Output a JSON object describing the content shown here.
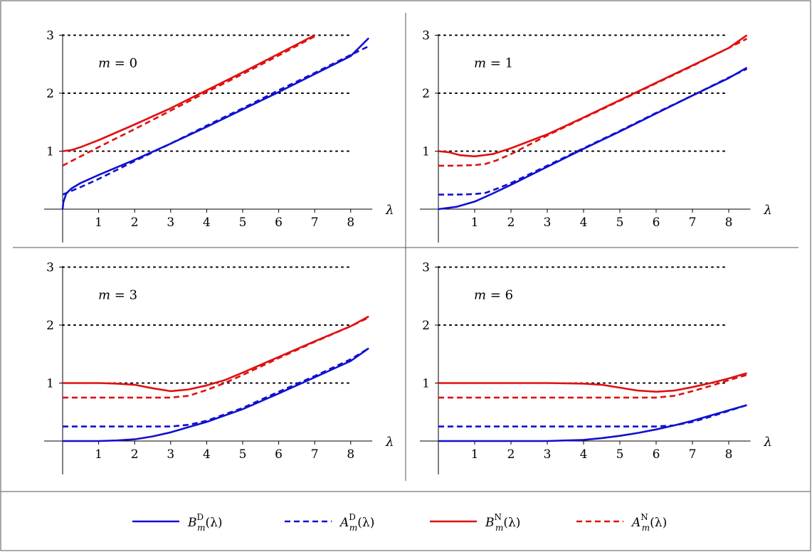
{
  "chart_data": [
    {
      "type": "line",
      "panel_label": "m = 0",
      "m": 0,
      "xlabel": "λ",
      "x_ticks": [
        "1",
        "2",
        "3",
        "4",
        "5",
        "6",
        "7",
        "8"
      ],
      "y_ticks": [
        "1",
        "2",
        "3"
      ],
      "xlim": [
        0,
        8.5
      ],
      "ylim": [
        0,
        3
      ],
      "grid": "dotted horizontal at y = 1, 2, 3",
      "series": [
        {
          "name": "B_m^D(λ)",
          "style": "solid",
          "color": "#1010d0",
          "x": [
            0,
            0.02,
            0.1,
            0.25,
            0.5,
            1,
            2,
            3,
            4,
            5,
            6,
            7,
            8,
            8.5
          ],
          "y": [
            0,
            0.12,
            0.27,
            0.36,
            0.45,
            0.59,
            0.85,
            1.13,
            1.42,
            1.72,
            2.02,
            2.33,
            2.64,
            2.95
          ]
        },
        {
          "name": "A_m^D(λ)",
          "style": "dashed",
          "color": "#1010d0",
          "x": [
            0,
            0.5,
            1,
            2,
            3,
            4,
            5,
            6,
            7,
            8,
            8.5
          ],
          "y": [
            0.25,
            0.38,
            0.52,
            0.83,
            1.13,
            1.44,
            1.74,
            2.05,
            2.35,
            2.66,
            2.81
          ]
        },
        {
          "name": "B_m^N(λ)",
          "style": "solid",
          "color": "#e01010",
          "x": [
            0,
            0.25,
            0.5,
            1,
            2,
            3,
            4,
            5,
            6,
            7
          ],
          "y": [
            1.0,
            1.02,
            1.07,
            1.19,
            1.46,
            1.74,
            2.05,
            2.36,
            2.68,
            3.0
          ]
        },
        {
          "name": "A_m^N(λ)",
          "style": "dashed",
          "color": "#e01010",
          "x": [
            0,
            1,
            2,
            3,
            4,
            5,
            6,
            7
          ],
          "y": [
            0.75,
            1.07,
            1.38,
            1.7,
            2.02,
            2.33,
            2.65,
            2.98
          ]
        }
      ]
    },
    {
      "type": "line",
      "panel_label": "m = 1",
      "m": 1,
      "xlabel": "λ",
      "x_ticks": [
        "1",
        "2",
        "3",
        "4",
        "5",
        "6",
        "7",
        "8"
      ],
      "y_ticks": [
        "1",
        "2",
        "3"
      ],
      "xlim": [
        0,
        8.5
      ],
      "ylim": [
        0,
        3
      ],
      "grid": "dotted horizontal at y = 1, 2, 3",
      "series": [
        {
          "name": "B_m^D(λ)",
          "style": "solid",
          "color": "#1010d0",
          "x": [
            0,
            0.5,
            1,
            1.5,
            2,
            3,
            4,
            5,
            6,
            7,
            8,
            8.5
          ],
          "y": [
            0,
            0.04,
            0.13,
            0.27,
            0.42,
            0.73,
            1.04,
            1.34,
            1.65,
            1.96,
            2.26,
            2.44
          ]
        },
        {
          "name": "A_m^D(λ)",
          "style": "dashed",
          "color": "#1010d0",
          "x": [
            0,
            0.5,
            1,
            1.3,
            1.6,
            2,
            3,
            4,
            5,
            6,
            7,
            8,
            8.5
          ],
          "y": [
            0.25,
            0.25,
            0.26,
            0.28,
            0.35,
            0.45,
            0.75,
            1.05,
            1.35,
            1.66,
            1.96,
            2.27,
            2.42
          ]
        },
        {
          "name": "B_m^N(λ)",
          "style": "solid",
          "color": "#e01010",
          "x": [
            0,
            0.3,
            0.6,
            1,
            1.5,
            2,
            3,
            4,
            5,
            6,
            7,
            8,
            8.5
          ],
          "y": [
            1.0,
            0.98,
            0.93,
            0.91,
            0.95,
            1.05,
            1.29,
            1.58,
            1.88,
            2.18,
            2.48,
            2.78,
            3.0
          ]
        },
        {
          "name": "A_m^N(λ)",
          "style": "dashed",
          "color": "#e01010",
          "x": [
            0,
            0.5,
            1,
            1.3,
            1.6,
            2,
            3,
            4,
            5,
            6,
            7,
            8,
            8.5
          ],
          "y": [
            0.75,
            0.75,
            0.76,
            0.78,
            0.84,
            0.95,
            1.27,
            1.57,
            1.87,
            2.17,
            2.47,
            2.78,
            2.94
          ]
        }
      ]
    },
    {
      "type": "line",
      "panel_label": "m = 3",
      "m": 3,
      "xlabel": "λ",
      "x_ticks": [
        "1",
        "2",
        "3",
        "4",
        "5",
        "6",
        "7",
        "8"
      ],
      "y_ticks": [
        "1",
        "2",
        "3"
      ],
      "xlim": [
        0,
        8.5
      ],
      "ylim": [
        0,
        3
      ],
      "grid": "dotted horizontal at y = 1, 2, 3",
      "series": [
        {
          "name": "B_m^D(λ)",
          "style": "solid",
          "color": "#1010d0",
          "x": [
            0,
            1,
            1.5,
            2,
            2.5,
            3,
            3.5,
            4,
            5,
            6,
            7,
            8,
            8.5
          ],
          "y": [
            0,
            0,
            0.01,
            0.03,
            0.08,
            0.15,
            0.24,
            0.33,
            0.55,
            0.82,
            1.1,
            1.38,
            1.6
          ]
        },
        {
          "name": "A_m^D(λ)",
          "style": "dashed",
          "color": "#1010d0",
          "x": [
            0,
            2,
            3,
            3.5,
            4,
            5,
            6,
            7,
            8,
            8.5
          ],
          "y": [
            0.25,
            0.25,
            0.25,
            0.28,
            0.35,
            0.57,
            0.85,
            1.12,
            1.41,
            1.6
          ]
        },
        {
          "name": "B_m^N(λ)",
          "style": "solid",
          "color": "#e01010",
          "x": [
            0,
            1,
            1.5,
            2,
            2.5,
            3,
            3.5,
            4,
            4.5,
            5,
            6,
            7,
            8,
            8.5
          ],
          "y": [
            1.0,
            1.0,
            0.99,
            0.97,
            0.91,
            0.86,
            0.89,
            0.96,
            1.05,
            1.18,
            1.45,
            1.72,
            1.98,
            2.15
          ]
        },
        {
          "name": "A_m^N(λ)",
          "style": "dashed",
          "color": "#e01010",
          "x": [
            0,
            2,
            3,
            3.5,
            4,
            4.5,
            5,
            6,
            7,
            8,
            8.5
          ],
          "y": [
            0.75,
            0.75,
            0.75,
            0.78,
            0.88,
            1.0,
            1.14,
            1.43,
            1.71,
            1.98,
            2.13
          ]
        }
      ]
    },
    {
      "type": "line",
      "panel_label": "m = 6",
      "m": 6,
      "xlabel": "λ",
      "x_ticks": [
        "1",
        "2",
        "3",
        "4",
        "5",
        "6",
        "7",
        "8"
      ],
      "y_ticks": [
        "1",
        "2",
        "3"
      ],
      "xlim": [
        0,
        8.5
      ],
      "ylim": [
        0,
        3
      ],
      "grid": "dotted horizontal at y = 1, 2, 3",
      "series": [
        {
          "name": "B_m^D(λ)",
          "style": "solid",
          "color": "#1010d0",
          "x": [
            0,
            3,
            3.5,
            4,
            4.5,
            5,
            5.5,
            6,
            6.5,
            7,
            7.5,
            8,
            8.5
          ],
          "y": [
            0,
            0,
            0.01,
            0.02,
            0.05,
            0.09,
            0.14,
            0.2,
            0.27,
            0.35,
            0.44,
            0.53,
            0.62
          ]
        },
        {
          "name": "A_m^D(λ)",
          "style": "dashed",
          "color": "#1010d0",
          "x": [
            0,
            5,
            6,
            6.5,
            7,
            7.5,
            8,
            8.5
          ],
          "y": [
            0.25,
            0.25,
            0.25,
            0.27,
            0.33,
            0.42,
            0.52,
            0.62
          ]
        },
        {
          "name": "B_m^N(λ)",
          "style": "solid",
          "color": "#e01010",
          "x": [
            0,
            3,
            4,
            4.5,
            5,
            5.5,
            6,
            6.5,
            7,
            7.5,
            8,
            8.5
          ],
          "y": [
            1.0,
            1.0,
            0.99,
            0.97,
            0.92,
            0.87,
            0.85,
            0.87,
            0.93,
            1.0,
            1.08,
            1.17
          ]
        },
        {
          "name": "A_m^N(λ)",
          "style": "dashed",
          "color": "#e01010",
          "x": [
            0,
            5,
            6,
            6.5,
            7,
            7.5,
            8,
            8.5
          ],
          "y": [
            0.75,
            0.75,
            0.75,
            0.78,
            0.86,
            0.95,
            1.05,
            1.14
          ]
        }
      ]
    }
  ],
  "legend": {
    "items": [
      {
        "base": "B",
        "sub": "m",
        "sup": "D",
        "arg": "(λ)",
        "style": "solid",
        "color": "#1010d0"
      },
      {
        "base": "A",
        "sub": "m",
        "sup": "D",
        "arg": "(λ)",
        "style": "dashed",
        "color": "#1010d0"
      },
      {
        "base": "B",
        "sub": "m",
        "sup": "N",
        "arg": "(λ)",
        "style": "solid",
        "color": "#e01010"
      },
      {
        "base": "A",
        "sub": "m",
        "sup": "N",
        "arg": "(λ)",
        "style": "dashed",
        "color": "#e01010"
      }
    ]
  }
}
